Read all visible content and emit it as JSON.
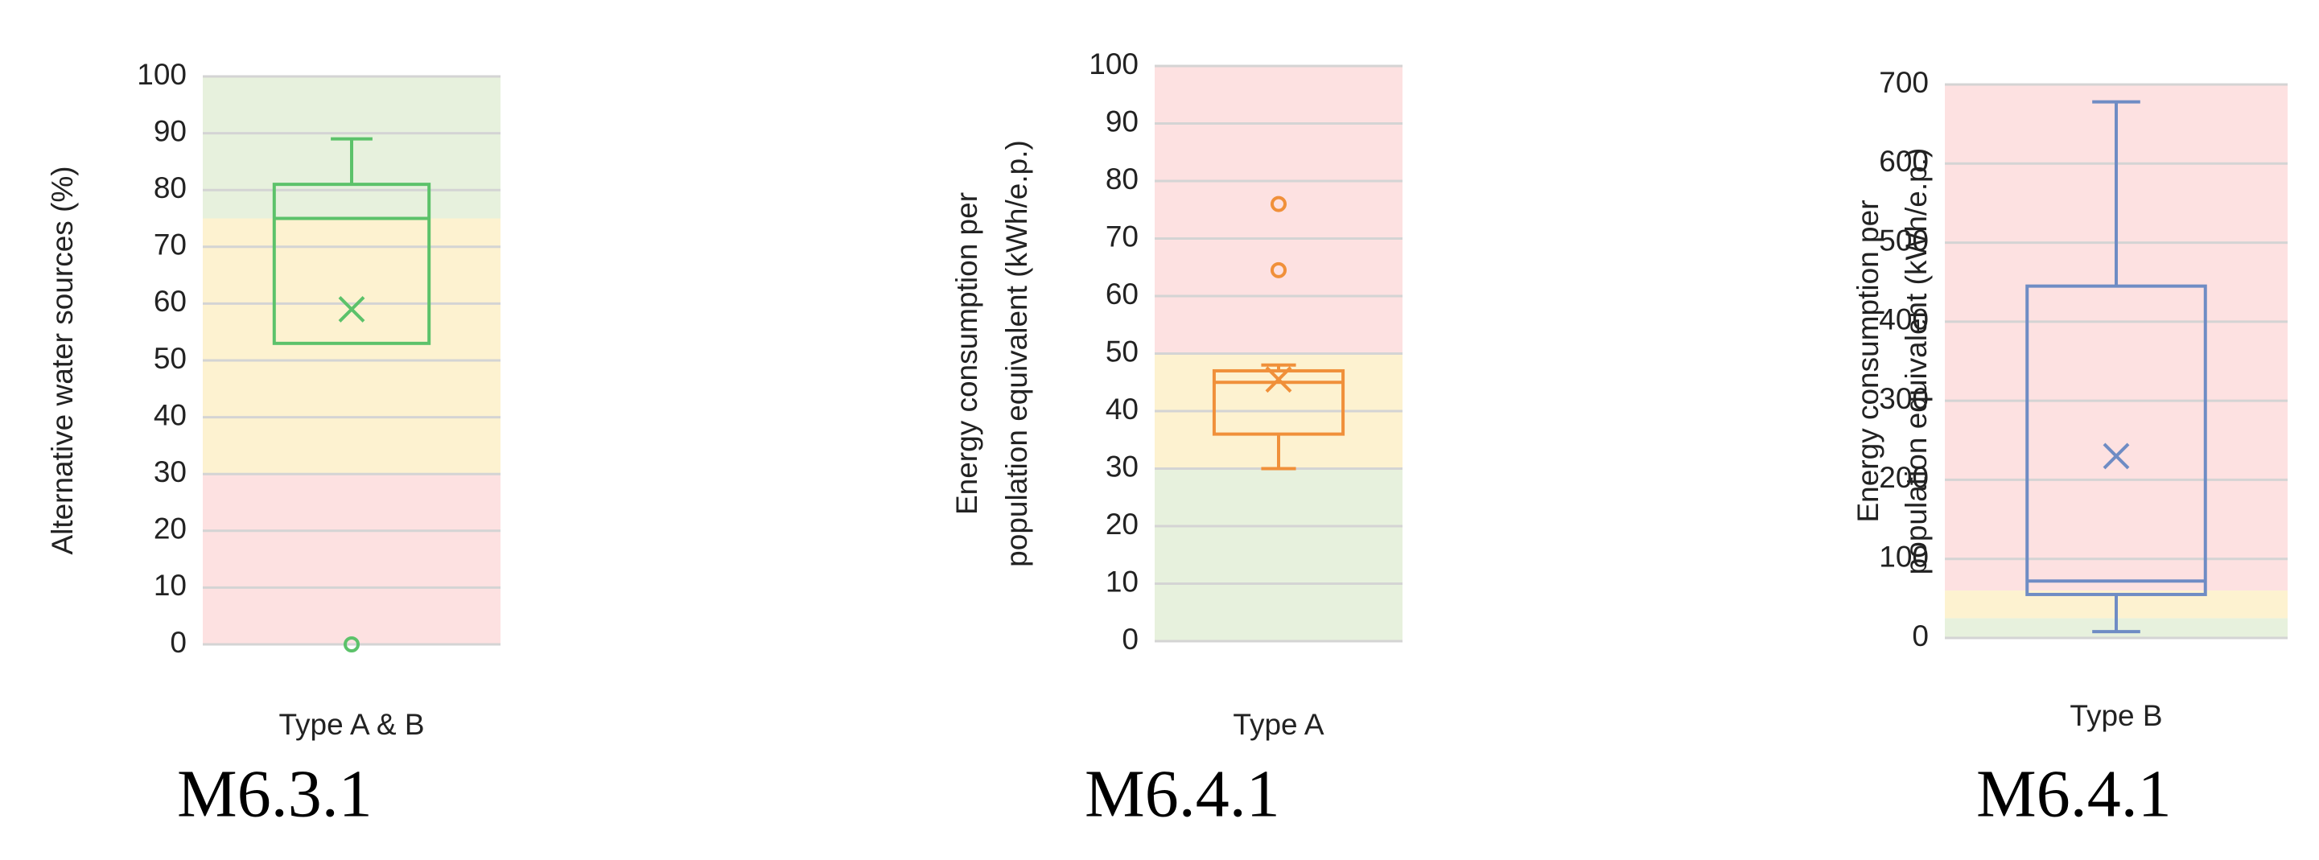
{
  "chart_data": [
    {
      "type": "box",
      "ylabel": [
        "Alternative water sources (%)"
      ],
      "category": "Type A & B",
      "caption": "M6.3.1",
      "ylim": [
        0,
        100
      ],
      "yticks": [
        0,
        10,
        20,
        30,
        40,
        50,
        60,
        70,
        80,
        90,
        100
      ],
      "grid": true,
      "color": "#5cc26a",
      "bands": [
        {
          "from": 0,
          "to": 30,
          "color": "#fde1e1"
        },
        {
          "from": 30,
          "to": 75,
          "color": "#fdf2d0"
        },
        {
          "from": 75,
          "to": 100,
          "color": "#e7f1dd"
        }
      ],
      "q1": 53,
      "median": 75,
      "q3": 81,
      "max": 89,
      "mean": 59,
      "outliers": [
        0
      ]
    },
    {
      "type": "box",
      "ylabel": [
        "Energy consumption per",
        "population equivalent (kWh/e.p.)"
      ],
      "category": "Type A",
      "caption": "M6.4.1",
      "ylim": [
        0,
        100
      ],
      "yticks": [
        0,
        10,
        20,
        30,
        40,
        50,
        60,
        70,
        80,
        90,
        100
      ],
      "grid": true,
      "color": "#f0903a",
      "bands": [
        {
          "from": 0,
          "to": 30,
          "color": "#e7f1dd"
        },
        {
          "from": 30,
          "to": 50,
          "color": "#fdf2d0"
        },
        {
          "from": 50,
          "to": 100,
          "color": "#fde1e1"
        }
      ],
      "min": 30,
      "q1": 36,
      "median": 45,
      "q3": 47,
      "max": 48,
      "mean": 45.5,
      "outliers": [
        76,
        64.5
      ]
    },
    {
      "type": "box",
      "ylabel": [
        "Energy consumption per",
        "population equivalent (kWh/e.p.)"
      ],
      "category": "Type B",
      "caption": "M6.4.1",
      "ylim": [
        0,
        700
      ],
      "yticks": [
        0,
        100,
        200,
        300,
        400,
        500,
        600,
        700
      ],
      "grid": true,
      "color": "#6f8cc4",
      "bands": [
        {
          "from": 0,
          "to": 25,
          "color": "#e7f1dd"
        },
        {
          "from": 25,
          "to": 60,
          "color": "#fdf2d0"
        },
        {
          "from": 60,
          "to": 700,
          "color": "#fde1e1"
        }
      ],
      "min": 8,
      "q1": 55,
      "median": 72,
      "q3": 445,
      "max": 678,
      "mean": 230,
      "outliers": []
    }
  ]
}
